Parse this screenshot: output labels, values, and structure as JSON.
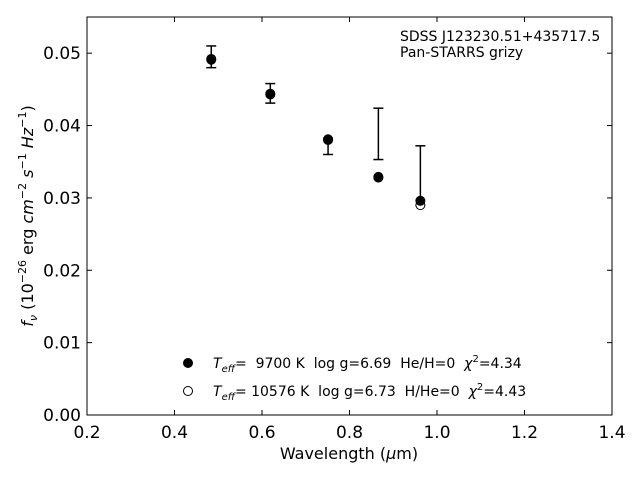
{
  "chart_data": {
    "type": "scatter",
    "xlabel_main": "Wavelength (",
    "xlabel_mu": "μ",
    "xlabel_unit": "m)",
    "ylabel_f": "f",
    "ylabel_sub": "ν",
    "ylabel_open": " (10",
    "ylabel_exp1": "−26",
    "ylabel_erg": " erg ",
    "ylabel_cm": "cm",
    "ylabel_exp2": "−2",
    "ylabel_s": " s",
    "ylabel_exp3": "−1",
    "ylabel_hz": " Hz",
    "ylabel_exp4": "−1",
    "ylabel_close": ")",
    "xlim": [
      0.2,
      1.4
    ],
    "ylim": [
      0.0,
      0.055
    ],
    "xticks": [
      0.2,
      0.4,
      0.6,
      0.8,
      1.0,
      1.2,
      1.4
    ],
    "xtick_labels": [
      "0.2",
      "0.4",
      "0.6",
      "0.8",
      "1.0",
      "1.2",
      "1.4"
    ],
    "yticks": [
      0.0,
      0.01,
      0.02,
      0.03,
      0.04,
      0.05
    ],
    "ytick_labels": [
      "0.00",
      "0.01",
      "0.02",
      "0.03",
      "0.04",
      "0.05"
    ],
    "annotation": [
      "SDSS J123230.51+435717.5",
      "Pan-STARRS grizy"
    ],
    "observed": [
      {
        "x": 0.484,
        "y": 0.0495,
        "lo": 0.048,
        "hi": 0.051
      },
      {
        "x": 0.619,
        "y": 0.0444,
        "lo": 0.0431,
        "hi": 0.0458
      },
      {
        "x": 0.751,
        "y": 0.0381,
        "lo": 0.036,
        "hi": 0.0382
      },
      {
        "x": 0.866,
        "y": 0.0389,
        "lo": 0.0353,
        "hi": 0.0424
      },
      {
        "x": 0.962,
        "y": 0.0293,
        "lo": 0.029,
        "hi": 0.0372
      }
    ],
    "series": [
      {
        "marker": "filled",
        "x": [
          0.484,
          0.619,
          0.751,
          0.866,
          0.962
        ],
        "y": [
          0.0492,
          0.0444,
          0.0381,
          0.0329,
          0.0296
        ]
      },
      {
        "marker": "open",
        "x": [
          0.484,
          0.619,
          0.751,
          0.866,
          0.962
        ],
        "y": [
          0.0491,
          0.0443,
          0.038,
          0.0328,
          0.029
        ]
      }
    ],
    "legend": [
      {
        "marker": "filled",
        "teff_label": "T",
        "teff_sub": "eff",
        "text_a": "=  9700 K  log g=6.69  He/H=0  ",
        "chi": "χ",
        "chi_exp": "2",
        "text_b": "=4.34"
      },
      {
        "marker": "open",
        "teff_label": "T",
        "teff_sub": "eff",
        "text_a": "= 10576 K  log g=6.73  H/He=0  ",
        "chi": "χ",
        "chi_exp": "2",
        "text_b": "=4.43"
      }
    ]
  }
}
